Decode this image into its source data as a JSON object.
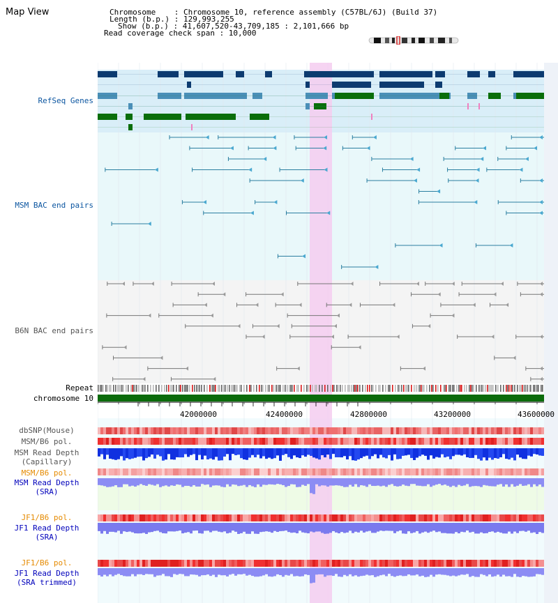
{
  "header": {
    "title": "Map View",
    "chromosome_line": "Chromosome    : Chromosome 10, reference assembly (C57BL/6J) (Build 37)",
    "length_line": "Length (b.p.) : 129,993,255",
    "show_line": "Show (b.p.) : 41,607,520-43,709,185 : 2,101,666 bp",
    "coverage_line": "Read coverage check span : 10,000"
  },
  "colors": {
    "refseq_label": "#0b55a0",
    "msm_label": "#0b55a0",
    "b6n_label": "#555555",
    "orange_label": "#e58a00",
    "blue_label": "#0000bb",
    "highlight": "#f4cdf0",
    "refseq_dark": "#0d3b70",
    "refseq_mid": "#4a8fb8",
    "refseq_green": "#0a6e0a"
  },
  "tracks": {
    "refseq": "RefSeq Genes",
    "msm_bac": "MSM BAC end pairs",
    "b6n_bac": "B6N BAC end pairs",
    "repeat": "Repeat",
    "chromosome": "chromosome 10",
    "dbsnp": "dbSNP(Mouse)",
    "msm_b6_pol_1": "MSM/B6 pol.",
    "msm_depth_cap": "MSM Read Depth\n(Capillary)",
    "msm_b6_pol_2": "MSM/B6 pol.",
    "msm_depth_sra": "MSM Read Depth\n(SRA)",
    "jf1_b6_pol_1": "JF1/B6 pol.",
    "jf1_depth_sra": "JF1 Read Depth\n(SRA)",
    "jf1_b6_pol_2": "JF1/B6 pol.",
    "jf1_depth_trim": "JF1 Read Depth\n(SRA trimmed)"
  },
  "axis": {
    "ticks": [
      "42000000",
      "42400000",
      "42800000",
      "43200000",
      "43600000"
    ]
  }
}
